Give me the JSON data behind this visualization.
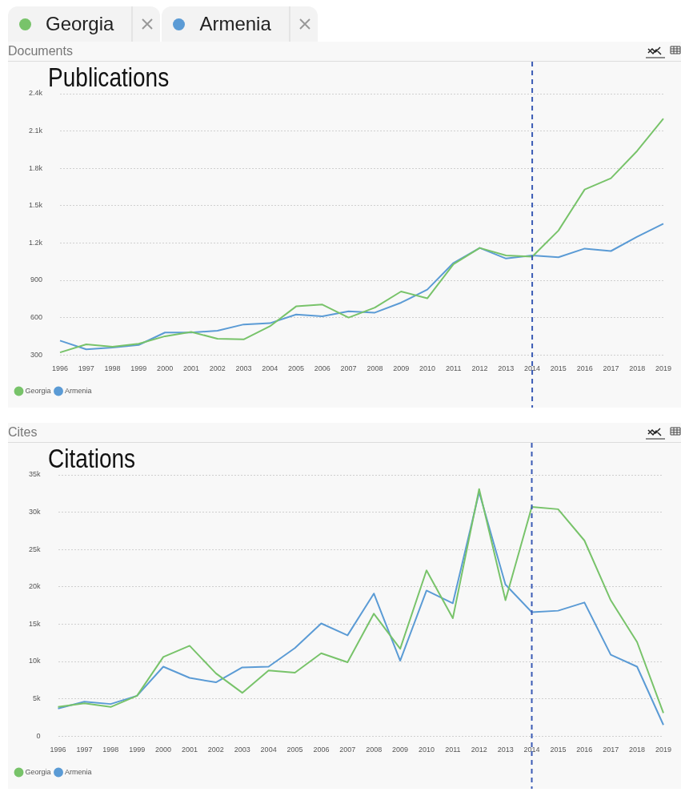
{
  "chart_data": [
    {
      "type": "line",
      "title": "Documents",
      "subtitle": "Publications",
      "categories": [
        "1996",
        "1997",
        "1998",
        "1999",
        "2000",
        "2001",
        "2002",
        "2003",
        "2004",
        "2005",
        "2006",
        "2007",
        "2008",
        "2009",
        "2010",
        "2011",
        "2012",
        "2013",
        "2014",
        "2015",
        "2016",
        "2017",
        "2018",
        "2019"
      ],
      "series": [
        {
          "name": "Georgia",
          "color": "#78c36a",
          "values": [
            320,
            385,
            365,
            390,
            450,
            485,
            430,
            425,
            530,
            690,
            705,
            600,
            680,
            810,
            755,
            1030,
            1160,
            1100,
            1090,
            1300,
            1630,
            1720,
            1940,
            2200
          ]
        },
        {
          "name": "Armenia",
          "color": "#5b9bd5",
          "values": [
            415,
            345,
            360,
            380,
            480,
            480,
            495,
            545,
            555,
            625,
            610,
            650,
            640,
            720,
            825,
            1040,
            1160,
            1075,
            1100,
            1085,
            1155,
            1135,
            1250,
            1355
          ]
        }
      ],
      "ylim": [
        300,
        2400
      ],
      "yticks": [
        300,
        600,
        900,
        {
          "value": 1200,
          "label": "1.2k"
        },
        {
          "value": 1500,
          "label": "1.5k"
        },
        {
          "value": 1800,
          "label": "1.8k"
        },
        {
          "value": 2100,
          "label": "2.1k"
        },
        {
          "value": 2400,
          "label": "2.4k"
        }
      ],
      "grid": "y",
      "legend": "bottom left",
      "marker": "none",
      "ref_lines": [
        {
          "axis": "x",
          "value": "2014",
          "color": "#3b5bb5",
          "line_style": "dashed"
        }
      ]
    },
    {
      "type": "line",
      "title": "Cites",
      "subtitle": "Citations",
      "categories": [
        "1996",
        "1997",
        "1998",
        "1999",
        "2000",
        "2001",
        "2002",
        "2003",
        "2004",
        "2005",
        "2006",
        "2007",
        "2008",
        "2009",
        "2010",
        "2011",
        "2012",
        "2013",
        "2014",
        "2015",
        "2016",
        "2017",
        "2018",
        "2019"
      ],
      "series": [
        {
          "name": "Georgia",
          "color": "#78c36a",
          "values": [
            3900,
            4400,
            3900,
            5400,
            10600,
            12100,
            8400,
            5800,
            8800,
            8500,
            11100,
            9900,
            16400,
            11700,
            22200,
            15800,
            33100,
            18200,
            30700,
            30400,
            26200,
            18200,
            12600,
            3100
          ]
        },
        {
          "name": "Armenia",
          "color": "#5b9bd5",
          "values": [
            3700,
            4600,
            4300,
            5400,
            9300,
            7800,
            7200,
            9200,
            9300,
            11800,
            15100,
            13500,
            19100,
            10100,
            19500,
            17800,
            32700,
            20300,
            16600,
            16800,
            17900,
            10900,
            9300,
            1500
          ]
        }
      ],
      "ylim": [
        0,
        35000
      ],
      "yticks": [
        0,
        {
          "value": 5000,
          "label": "5k"
        },
        {
          "value": 10000,
          "label": "10k"
        },
        {
          "value": 15000,
          "label": "15k"
        },
        {
          "value": 20000,
          "label": "20k"
        },
        {
          "value": 25000,
          "label": "25k"
        },
        {
          "value": 30000,
          "label": "30k"
        },
        {
          "value": 35000,
          "label": "35k"
        }
      ],
      "grid": "y",
      "legend": "bottom left",
      "marker": "none",
      "ref_lines": [
        {
          "axis": "x",
          "value": "2014",
          "color": "#3b5bb5",
          "line_style": "dashed"
        }
      ]
    }
  ]
}
